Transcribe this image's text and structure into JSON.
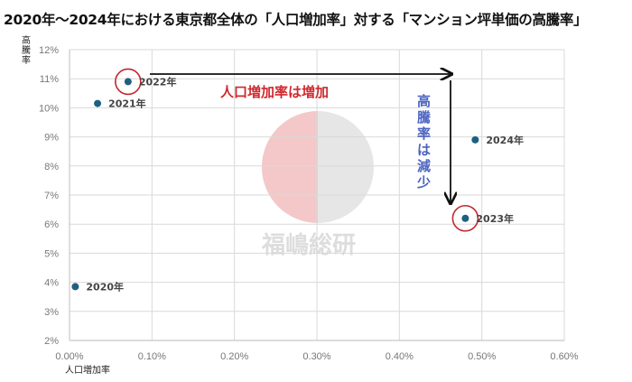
{
  "title": "2020年〜2024年における東京都全体の「人口増加率」対する「マンション坪単価の高騰率」",
  "annotations": {
    "population": "人口増加率は増加",
    "price": [
      "高",
      "騰",
      "率",
      "は",
      "減",
      "少"
    ]
  },
  "watermark": "福嶋総研",
  "colors": {
    "point": "#1f5f82",
    "circle": "#c0282e",
    "red_text": "#d0282e",
    "blue_text": "#4b64c0",
    "grid": "#d9d9d9"
  },
  "chart_data": {
    "type": "scatter",
    "title": "2020年〜2024年における東京都全体の「人口増加率」対する「マンション坪単価の高騰率」",
    "xlabel": "人口増加率",
    "ylabel": "高騰率",
    "xlim": [
      0,
      0.6
    ],
    "ylim": [
      2,
      12
    ],
    "x_ticks": [
      "0.00%",
      "0.10%",
      "0.20%",
      "0.30%",
      "0.40%",
      "0.50%",
      "0.60%"
    ],
    "y_ticks": [
      "2%",
      "3%",
      "4%",
      "5%",
      "6%",
      "7%",
      "8%",
      "9%",
      "10%",
      "11%",
      "12%"
    ],
    "grid": true,
    "points": [
      {
        "label": "2020年",
        "x": 0.007,
        "y": 3.85
      },
      {
        "label": "2021年",
        "x": 0.034,
        "y": 10.15
      },
      {
        "label": "2022年",
        "x": 0.071,
        "y": 10.9
      },
      {
        "label": "2023年",
        "x": 0.48,
        "y": 6.2
      },
      {
        "label": "2024年",
        "x": 0.492,
        "y": 8.9
      }
    ],
    "highlighted": [
      "2022年",
      "2023年"
    ]
  }
}
